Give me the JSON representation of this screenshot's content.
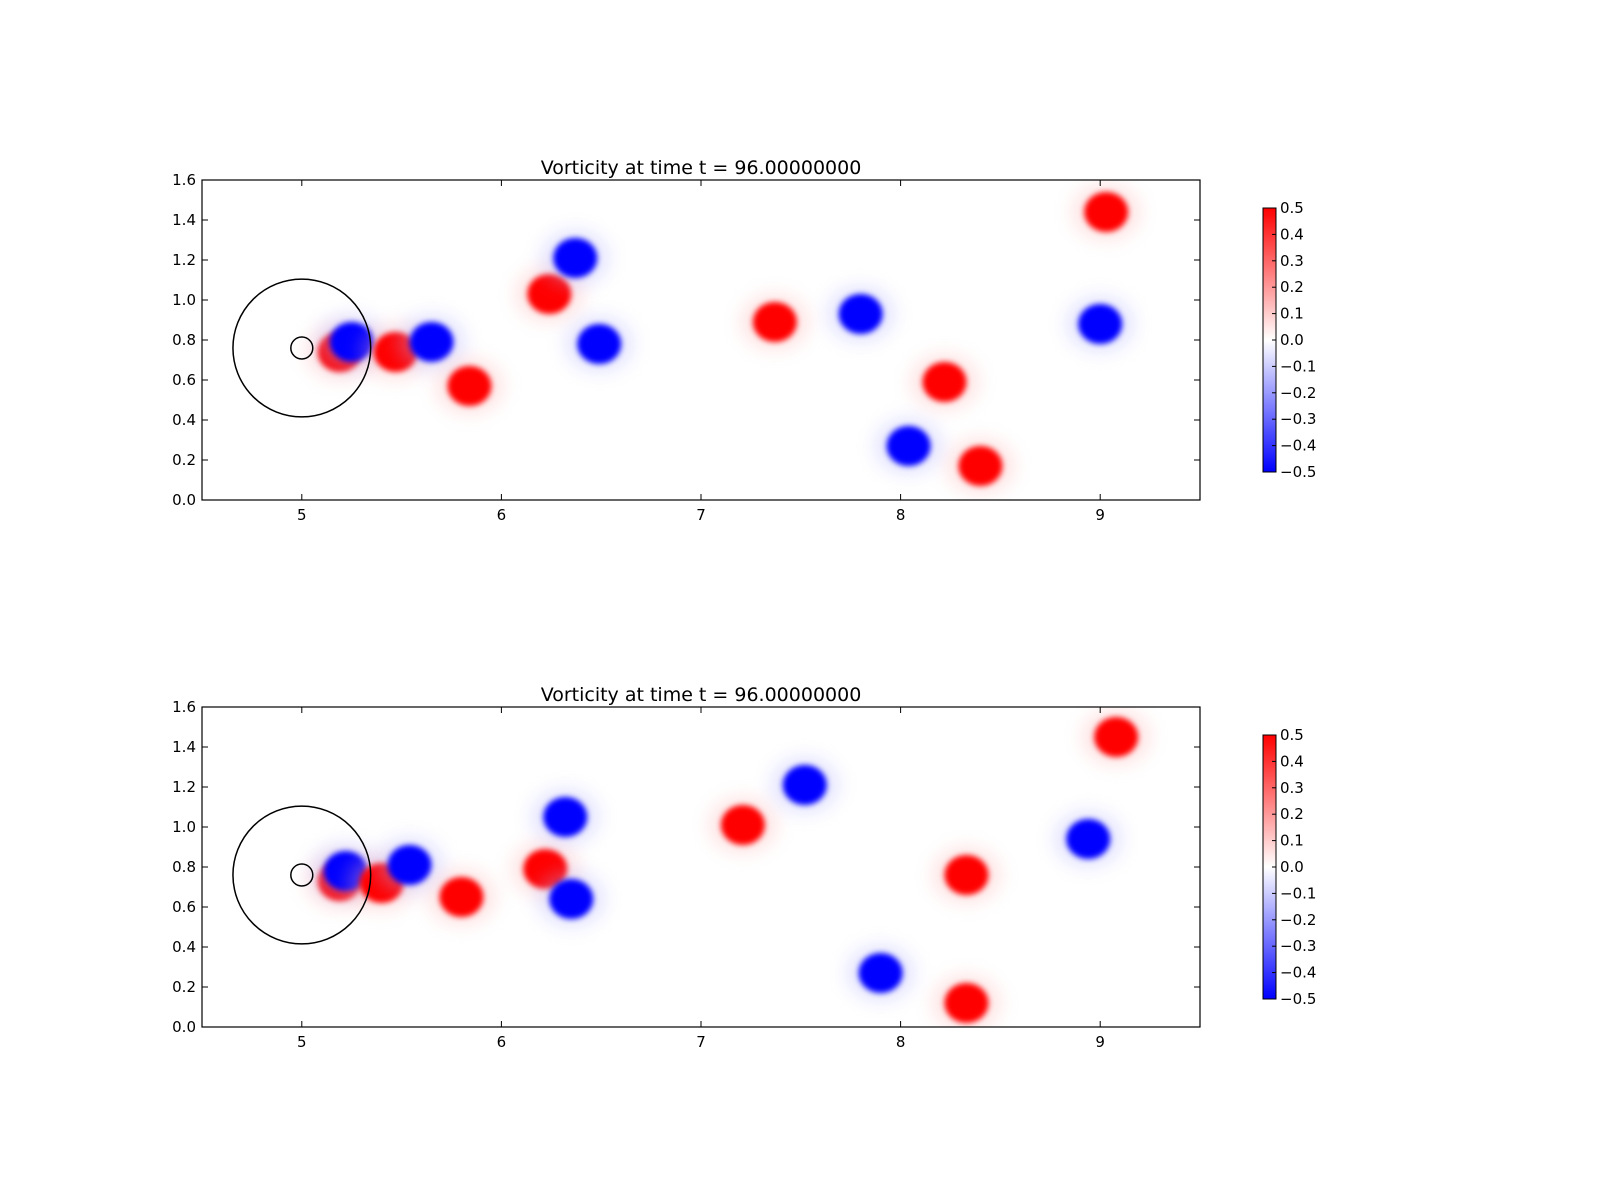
{
  "chart_data": [
    {
      "type": "heatmap",
      "title": "Vorticity at time t =    96.00000000",
      "xlim": [
        4.5,
        9.5
      ],
      "ylim": [
        0.0,
        1.6
      ],
      "xticks": [
        "5",
        "6",
        "7",
        "8",
        "9"
      ],
      "yticks": [
        "0.0",
        "0.2",
        "0.4",
        "0.6",
        "0.8",
        "1.0",
        "1.2",
        "1.4",
        "1.6"
      ],
      "colorbar": {
        "range": [
          -0.5,
          0.5
        ],
        "colors": [
          "#0000ff",
          "#ffffff",
          "#ff0000"
        ],
        "ticks": [
          "0.5",
          "0.4",
          "0.3",
          "0.2",
          "0.1",
          "0.0",
          "−0.1",
          "−0.2",
          "−0.3",
          "−0.4",
          "−0.5"
        ]
      },
      "grid": false,
      "circles": [
        {
          "cx": 5.0,
          "cy": 0.76,
          "r": 0.345
        },
        {
          "cx": 5.0,
          "cy": 0.76,
          "r": 0.055
        }
      ],
      "vortices": [
        {
          "x": 5.19,
          "y": 0.74,
          "value": 0.5
        },
        {
          "x": 5.25,
          "y": 0.79,
          "value": -0.5
        },
        {
          "x": 5.47,
          "y": 0.74,
          "value": 0.5
        },
        {
          "x": 5.65,
          "y": 0.79,
          "value": -0.5
        },
        {
          "x": 5.84,
          "y": 0.57,
          "value": 0.5
        },
        {
          "x": 6.24,
          "y": 1.03,
          "value": 0.5
        },
        {
          "x": 6.37,
          "y": 1.21,
          "value": -0.5
        },
        {
          "x": 6.49,
          "y": 0.78,
          "value": -0.5
        },
        {
          "x": 7.37,
          "y": 0.89,
          "value": 0.5
        },
        {
          "x": 7.8,
          "y": 0.93,
          "value": -0.5
        },
        {
          "x": 8.22,
          "y": 0.59,
          "value": 0.5
        },
        {
          "x": 8.04,
          "y": 0.27,
          "value": -0.5
        },
        {
          "x": 8.4,
          "y": 0.17,
          "value": 0.5
        },
        {
          "x": 9.0,
          "y": 0.88,
          "value": -0.5
        },
        {
          "x": 9.03,
          "y": 1.44,
          "value": 0.5
        }
      ]
    },
    {
      "type": "heatmap",
      "title": "Vorticity at time t =    96.00000000",
      "xlim": [
        4.5,
        9.5
      ],
      "ylim": [
        0.0,
        1.6
      ],
      "xticks": [
        "5",
        "6",
        "7",
        "8",
        "9"
      ],
      "yticks": [
        "0.0",
        "0.2",
        "0.4",
        "0.6",
        "0.8",
        "1.0",
        "1.2",
        "1.4",
        "1.6"
      ],
      "colorbar": {
        "range": [
          -0.5,
          0.5
        ],
        "colors": [
          "#0000ff",
          "#ffffff",
          "#ff0000"
        ],
        "ticks": [
          "0.5",
          "0.4",
          "0.3",
          "0.2",
          "0.1",
          "0.0",
          "−0.1",
          "−0.2",
          "−0.3",
          "−0.4",
          "−0.5"
        ]
      },
      "grid": false,
      "circles": [
        {
          "cx": 5.0,
          "cy": 0.76,
          "r": 0.345
        },
        {
          "cx": 5.0,
          "cy": 0.76,
          "r": 0.055
        }
      ],
      "vortices": [
        {
          "x": 5.19,
          "y": 0.73,
          "value": 0.5
        },
        {
          "x": 5.22,
          "y": 0.78,
          "value": -0.5
        },
        {
          "x": 5.4,
          "y": 0.72,
          "value": 0.5
        },
        {
          "x": 5.54,
          "y": 0.81,
          "value": -0.5
        },
        {
          "x": 5.8,
          "y": 0.65,
          "value": 0.5
        },
        {
          "x": 6.22,
          "y": 0.79,
          "value": 0.5
        },
        {
          "x": 6.32,
          "y": 1.05,
          "value": -0.5
        },
        {
          "x": 6.35,
          "y": 0.64,
          "value": -0.5
        },
        {
          "x": 7.21,
          "y": 1.01,
          "value": 0.5
        },
        {
          "x": 7.52,
          "y": 1.21,
          "value": -0.5
        },
        {
          "x": 8.33,
          "y": 0.76,
          "value": 0.5
        },
        {
          "x": 7.9,
          "y": 0.27,
          "value": -0.5
        },
        {
          "x": 8.33,
          "y": 0.12,
          "value": 0.5
        },
        {
          "x": 8.94,
          "y": 0.94,
          "value": -0.5
        },
        {
          "x": 9.08,
          "y": 1.45,
          "value": 0.5
        }
      ]
    }
  ]
}
